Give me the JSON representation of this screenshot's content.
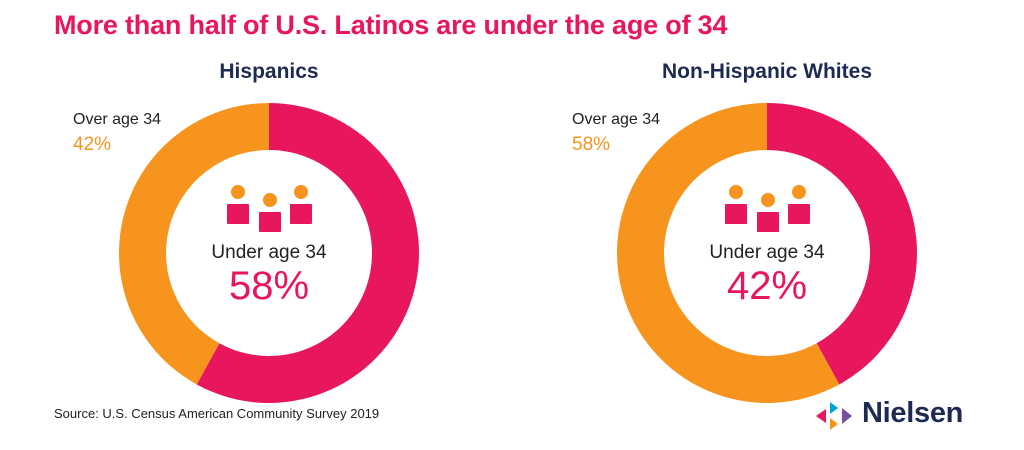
{
  "title": "More than half of U.S. Latinos are under the age of 34",
  "colors": {
    "under": "#e8175d",
    "over": "#f7941d",
    "person_head": "#f7941d",
    "person_body": "#e8175d"
  },
  "chart_data": [
    {
      "type": "pie",
      "title": "Hispanics",
      "slices": [
        {
          "label": "Under age 34",
          "value": 58,
          "display": "58%"
        },
        {
          "label": "Over age 34",
          "value": 42,
          "display": "42%"
        }
      ]
    },
    {
      "type": "pie",
      "title": "Non-Hispanic Whites",
      "slices": [
        {
          "label": "Under age 34",
          "value": 42,
          "display": "42%"
        },
        {
          "label": "Over age 34",
          "value": 58,
          "display": "58%"
        }
      ]
    }
  ],
  "source": "Source: U.S. Census American Community Survey 2019",
  "logo": {
    "text": "Nielsen",
    "icon": "nielsen-logo-icon"
  }
}
